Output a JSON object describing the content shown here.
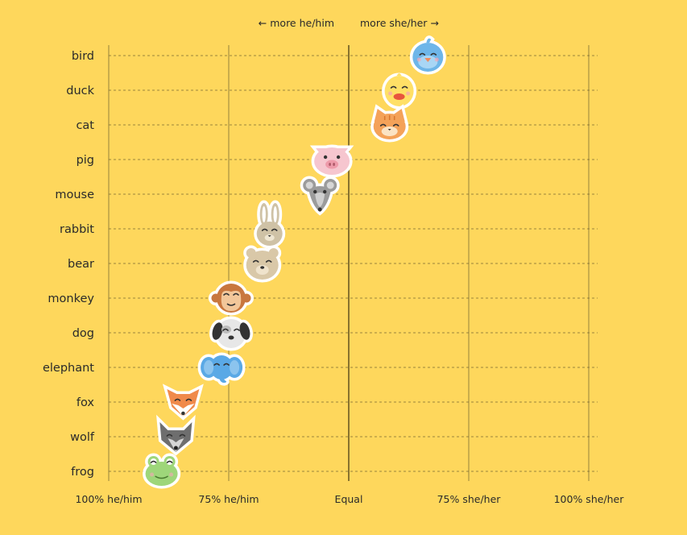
{
  "chart_data": {
    "type": "scatter",
    "direction_labels": {
      "left": "← more he/him",
      "right": "more she/her →"
    },
    "x_ticks": [
      "100% he/him",
      "75% he/him",
      "Equal",
      "75% she/her",
      "100% she/her"
    ],
    "xlim": [
      -1,
      1
    ],
    "categories": [
      "bird",
      "duck",
      "cat",
      "pig",
      "mouse",
      "rabbit",
      "bear",
      "monkey",
      "dog",
      "elephant",
      "fox",
      "wolf",
      "frog"
    ],
    "values": [
      0.33,
      0.21,
      0.17,
      -0.07,
      -0.12,
      -0.33,
      -0.36,
      -0.49,
      -0.49,
      -0.53,
      -0.69,
      -0.72,
      -0.78
    ],
    "grid": true,
    "marker_icons": [
      "bird-icon",
      "duck-icon",
      "cat-icon",
      "pig-icon",
      "mouse-icon",
      "rabbit-icon",
      "bear-icon",
      "monkey-icon",
      "dog-icon",
      "elephant-icon",
      "fox-icon",
      "wolf-icon",
      "frog-icon"
    ],
    "colors": {
      "background": "#FED75C",
      "grid": "#7a6a30",
      "bird": "#6EB6E9",
      "duck": "#FFE066",
      "cat": "#F4A259",
      "pig": "#F6C6CF",
      "mouse": "#9B9B9B",
      "rabbit": "#CFC2A6",
      "bear": "#D9C8A8",
      "monkey": "#C8773E",
      "dog": "#BDBDBD",
      "elephant": "#5AA9E6",
      "fox": "#F08A4B",
      "wolf": "#6E6E6E",
      "frog": "#9ED67A"
    }
  }
}
